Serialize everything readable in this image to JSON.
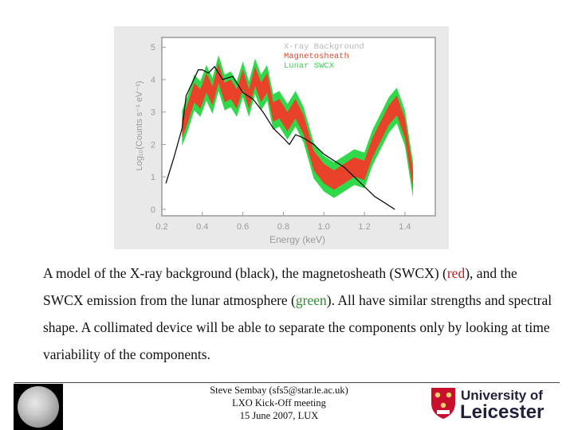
{
  "figure": {
    "legend": [
      "X-ray Background",
      "Magnetosheath",
      "Lunar SWCX"
    ],
    "legend_colors": [
      "#b9b9b9",
      "#e8432a",
      "#2fd94a"
    ],
    "ylabel": "Log₁₀(Counts s⁻¹ eV⁻¹)",
    "xlabel": "Energy (keV)",
    "y_ticks": [
      "0",
      "1",
      "2",
      "3",
      "4",
      "5"
    ],
    "x_ticks": [
      "0.2",
      "0.4",
      "0.6",
      "0.8",
      "1.0",
      "1.2",
      "1.4"
    ]
  },
  "chart_data": {
    "type": "area",
    "x_range": [
      0.2,
      1.55
    ],
    "y_range": [
      -0.2,
      5.3
    ],
    "series": [
      {
        "name": "X-ray Background",
        "x": [
          0.22,
          0.26,
          0.3,
          0.32,
          0.35,
          0.38,
          0.4,
          0.43,
          0.46,
          0.5,
          0.55,
          0.6,
          0.65,
          0.7,
          0.75,
          0.8,
          0.83,
          0.86,
          0.9,
          0.95,
          1.0,
          1.05,
          1.1,
          1.15,
          1.2,
          1.25,
          1.3,
          1.35
        ],
        "y": [
          0.8,
          1.6,
          2.5,
          3.5,
          3.9,
          4.3,
          4.3,
          4.2,
          4.4,
          4.0,
          4.1,
          3.6,
          3.4,
          3.0,
          2.5,
          2.2,
          2.0,
          2.3,
          2.2,
          2.0,
          1.7,
          1.5,
          1.3,
          1.0,
          0.7,
          0.4,
          0.2,
          0.0
        ]
      },
      {
        "name": "Magnetosheath",
        "x": [
          0.3,
          0.33,
          0.36,
          0.39,
          0.42,
          0.45,
          0.48,
          0.51,
          0.54,
          0.57,
          0.6,
          0.63,
          0.66,
          0.69,
          0.72,
          0.75,
          0.78,
          0.82,
          0.86,
          0.9,
          0.95,
          1.0,
          1.05,
          1.1,
          1.15,
          1.2,
          1.24,
          1.28,
          1.32,
          1.36,
          1.4,
          1.44
        ],
        "y": [
          2.5,
          3.0,
          3.6,
          3.4,
          3.9,
          3.5,
          4.2,
          3.6,
          3.7,
          3.4,
          4.0,
          3.4,
          4.1,
          3.6,
          3.9,
          3.0,
          3.1,
          2.7,
          3.1,
          2.6,
          1.5,
          1.1,
          0.9,
          1.1,
          1.3,
          1.2,
          1.9,
          2.4,
          2.9,
          3.2,
          2.5,
          0.9
        ]
      },
      {
        "name": "Lunar SWCX",
        "x": [
          0.3,
          0.33,
          0.36,
          0.39,
          0.42,
          0.45,
          0.48,
          0.51,
          0.54,
          0.57,
          0.6,
          0.63,
          0.66,
          0.69,
          0.72,
          0.75,
          0.78,
          0.82,
          0.86,
          0.9,
          0.95,
          1.0,
          1.05,
          1.1,
          1.15,
          1.2,
          1.24,
          1.28,
          1.32,
          1.36,
          1.4,
          1.44
        ],
        "y": [
          2.5,
          3.0,
          3.6,
          3.4,
          3.9,
          3.5,
          4.2,
          3.6,
          3.7,
          3.4,
          4.0,
          3.4,
          4.1,
          3.6,
          3.9,
          3.0,
          3.1,
          2.7,
          3.1,
          2.6,
          1.5,
          1.1,
          0.9,
          1.1,
          1.3,
          1.2,
          1.9,
          2.4,
          2.9,
          3.2,
          2.5,
          0.9
        ]
      }
    ]
  },
  "caption": {
    "part1": "A model of the X-ray background (black), the magnetosheath (SWCX) (",
    "red_word": "red",
    "part2": "), and the SWCX emission from the lunar atmosphere (",
    "green_word": "green",
    "part3": "). All have similar strengths and spectral shape. A collimated device will be able to separate the components only by looking at time variability of the components."
  },
  "footer": {
    "line1": "Steve Sembay (sfs5@star.le.ac.uk)",
    "line2": "LXO Kick-Off meeting",
    "line3": "15 June 2007, LUX"
  },
  "logo": {
    "line1": "University of",
    "line2": "Leicester"
  }
}
